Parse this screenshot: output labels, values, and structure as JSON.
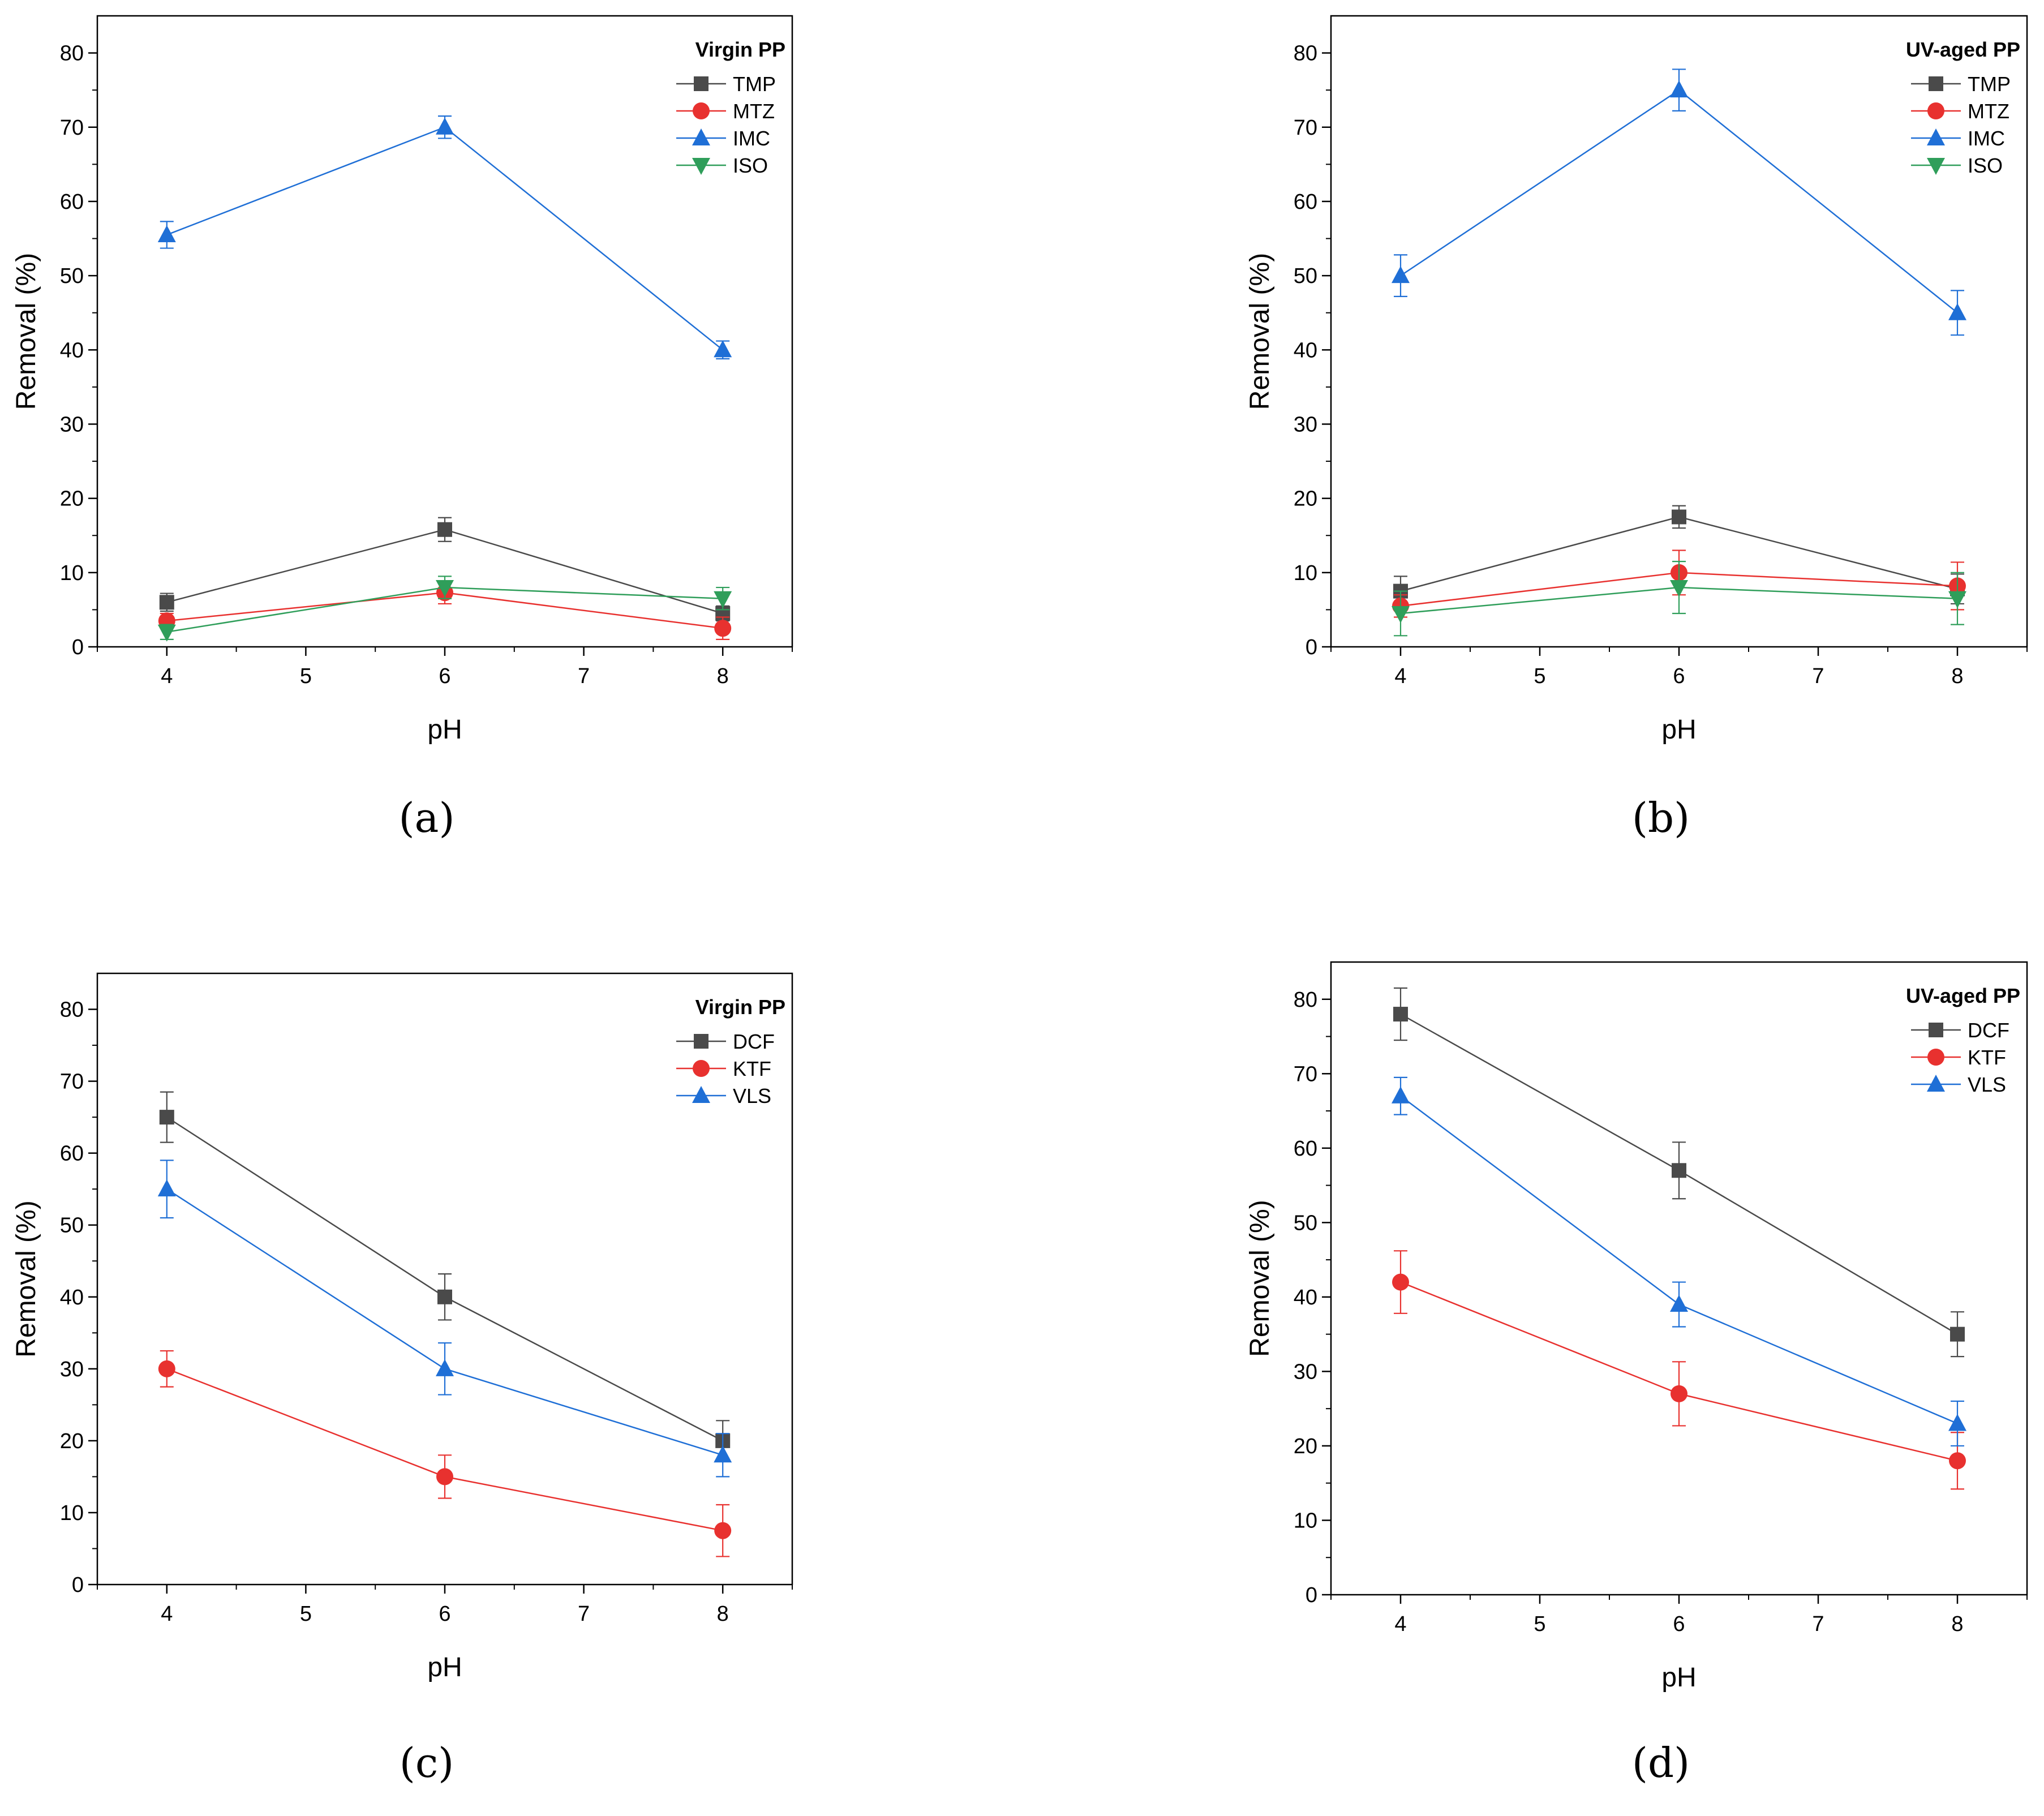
{
  "figure": {
    "captions": [
      "(a)",
      "(b)",
      "(c)",
      "(d)"
    ]
  },
  "chart_data": [
    {
      "type": "line",
      "panel": "(a)",
      "xlabel": "pH",
      "ylabel": "Removal (%)",
      "xlim": [
        3.5,
        8.5
      ],
      "ylim": [
        0,
        85
      ],
      "xticks": [
        4,
        5,
        6,
        7,
        8
      ],
      "yticks": [
        0,
        10,
        20,
        30,
        40,
        50,
        60,
        70,
        80
      ],
      "legend_title": "Virgin PP",
      "legend_position": "top-right",
      "x": [
        4,
        6,
        8
      ],
      "series": [
        {
          "name": "TMP",
          "color": "#4a4a4a",
          "marker": "square",
          "values": [
            6,
            15.8,
            4.5
          ],
          "errors": [
            1.2,
            1.6,
            1.0
          ]
        },
        {
          "name": "MTZ",
          "color": "#e8312f",
          "marker": "circle",
          "values": [
            3.5,
            7.3,
            2.5
          ],
          "errors": [
            1.0,
            1.5,
            1.5
          ]
        },
        {
          "name": "IMC",
          "color": "#1f6fd6",
          "marker": "triangle-up",
          "values": [
            55.5,
            70,
            40
          ],
          "errors": [
            1.8,
            1.5,
            1.2
          ]
        },
        {
          "name": "ISO",
          "color": "#2f9e5a",
          "marker": "triangle-down",
          "values": [
            2,
            8,
            6.5
          ],
          "errors": [
            1.0,
            1.5,
            1.5
          ]
        }
      ]
    },
    {
      "type": "line",
      "panel": "(b)",
      "xlabel": "pH",
      "ylabel": "Removal (%)",
      "xlim": [
        3.5,
        8.5
      ],
      "ylim": [
        0,
        85
      ],
      "xticks": [
        4,
        5,
        6,
        7,
        8
      ],
      "yticks": [
        0,
        10,
        20,
        30,
        40,
        50,
        60,
        70,
        80
      ],
      "legend_title": "UV-aged PP",
      "legend_position": "top-right",
      "x": [
        4,
        6,
        8
      ],
      "series": [
        {
          "name": "TMP",
          "color": "#4a4a4a",
          "marker": "square",
          "values": [
            7.5,
            17.5,
            7.8
          ],
          "errors": [
            2.0,
            1.5,
            2.0
          ]
        },
        {
          "name": "MTZ",
          "color": "#e8312f",
          "marker": "circle",
          "values": [
            5.5,
            10,
            8.2
          ],
          "errors": [
            1.5,
            3.0,
            3.2
          ]
        },
        {
          "name": "IMC",
          "color": "#1f6fd6",
          "marker": "triangle-up",
          "values": [
            50,
            75,
            45
          ],
          "errors": [
            2.8,
            2.8,
            3.0
          ]
        },
        {
          "name": "ISO",
          "color": "#2f9e5a",
          "marker": "triangle-down",
          "values": [
            4.5,
            8,
            6.5
          ],
          "errors": [
            3.0,
            3.5,
            3.5
          ]
        }
      ]
    },
    {
      "type": "line",
      "panel": "(c)",
      "xlabel": "pH",
      "ylabel": "Removal (%)",
      "xlim": [
        3.5,
        8.5
      ],
      "ylim": [
        0,
        85
      ],
      "xticks": [
        4,
        5,
        6,
        7,
        8
      ],
      "yticks": [
        0,
        10,
        20,
        30,
        40,
        50,
        60,
        70,
        80
      ],
      "legend_title": "Virgin PP",
      "legend_position": "top-right",
      "x": [
        4,
        6,
        8
      ],
      "series": [
        {
          "name": "DCF",
          "color": "#4a4a4a",
          "marker": "square",
          "values": [
            65,
            40,
            20
          ],
          "errors": [
            3.5,
            3.2,
            2.8
          ]
        },
        {
          "name": "KTF",
          "color": "#e8312f",
          "marker": "circle",
          "values": [
            30,
            15,
            7.5
          ],
          "errors": [
            2.5,
            3.0,
            3.6
          ]
        },
        {
          "name": "VLS",
          "color": "#1f6fd6",
          "marker": "triangle-up",
          "values": [
            55,
            30,
            18
          ],
          "errors": [
            4.0,
            3.6,
            3.0
          ]
        }
      ]
    },
    {
      "type": "line",
      "panel": "(d)",
      "xlabel": "pH",
      "ylabel": "Removal (%)",
      "xlim": [
        3.5,
        8.5
      ],
      "ylim": [
        0,
        85
      ],
      "xticks": [
        4,
        5,
        6,
        7,
        8
      ],
      "yticks": [
        0,
        10,
        20,
        30,
        40,
        50,
        60,
        70,
        80
      ],
      "legend_title": "UV-aged PP",
      "legend_position": "top-right",
      "x": [
        4,
        6,
        8
      ],
      "series": [
        {
          "name": "DCF",
          "color": "#4a4a4a",
          "marker": "square",
          "values": [
            78,
            57,
            35
          ],
          "errors": [
            3.5,
            3.8,
            3.0
          ]
        },
        {
          "name": "KTF",
          "color": "#e8312f",
          "marker": "circle",
          "values": [
            42,
            27,
            18
          ],
          "errors": [
            4.2,
            4.3,
            3.8
          ]
        },
        {
          "name": "VLS",
          "color": "#1f6fd6",
          "marker": "triangle-up",
          "values": [
            67,
            39,
            23
          ],
          "errors": [
            2.5,
            3.0,
            3.0
          ]
        }
      ]
    }
  ]
}
